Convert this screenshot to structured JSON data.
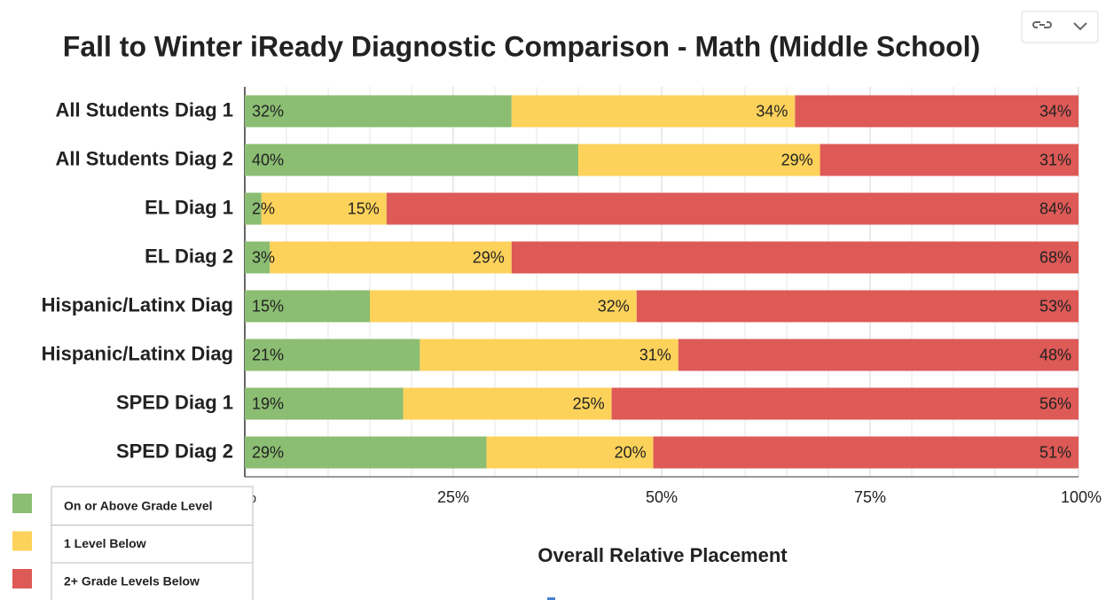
{
  "chart_data": {
    "type": "stacked_bar_horizontal",
    "title": "Fall to Winter iReady Diagnostic Comparison - Math (Middle School)",
    "x_label": "Overall Relative Placement",
    "categories": [
      "All Students Diag 1",
      "All Students Diag 2",
      "EL Diag 1",
      "EL Diag 2",
      "Hispanic/Latinx Diag",
      "Hispanic/Latinx Diag",
      "SPED Diag 1",
      "SPED Diag 2"
    ],
    "series": [
      {
        "name": "On or Above Grade Level",
        "color": "#8bbd72",
        "values": [
          32,
          40,
          2,
          3,
          15,
          21,
          19,
          29
        ],
        "value_labels": [
          "32%",
          "40%",
          "2%",
          "3%",
          "15%",
          "21%",
          "19%",
          "29%"
        ]
      },
      {
        "name": "1 Level Below",
        "color": "#fdd25b",
        "values": [
          34,
          29,
          15,
          29,
          32,
          31,
          25,
          20
        ],
        "value_labels": [
          "34%",
          "29%",
          "15%",
          "29%",
          "32%",
          "31%",
          "25%",
          "20%"
        ]
      },
      {
        "name": "2+ Grade Levels Below",
        "color": "#dd5a57",
        "values": [
          34,
          31,
          84,
          68,
          53,
          48,
          56,
          51
        ],
        "value_labels": [
          "34%",
          "31%",
          "84%",
          "68%",
          "53%",
          "48%",
          "56%",
          "51%"
        ]
      }
    ],
    "xlim": [
      0,
      100
    ],
    "xticks": [
      {
        "value": 0,
        "label": "0%"
      },
      {
        "value": 25,
        "label": "25%"
      },
      {
        "value": 50,
        "label": "50%"
      },
      {
        "value": 75,
        "label": "75%"
      },
      {
        "value": 100,
        "label": "100%"
      }
    ],
    "grid": true,
    "legend": "bottom-left"
  }
}
